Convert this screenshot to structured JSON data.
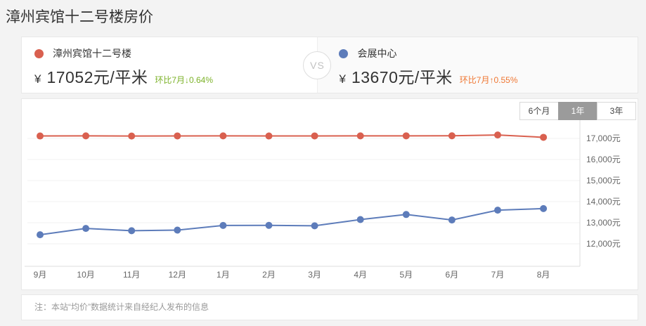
{
  "page_title": "漳州宾馆十二号楼房价",
  "compare": {
    "vs_label": "VS",
    "left": {
      "name": "漳州宾馆十二号楼",
      "currency": "¥",
      "price_text": "17052元/平米",
      "change_label": "环比7月↓0.64%",
      "color": "#d9604f",
      "change_color": "#7cb228"
    },
    "right": {
      "name": "会展中心",
      "currency": "¥",
      "price_text": "13670元/平米",
      "change_label": "环比7月↑0.55%",
      "color": "#5d7cba",
      "change_color": "#ef7733"
    }
  },
  "tabs": [
    {
      "label": "6个月",
      "selected": false
    },
    {
      "label": "1年",
      "selected": true
    },
    {
      "label": "3年",
      "selected": false
    }
  ],
  "note": "注：本站“均价”数据统计来自经纪人发布的信息",
  "chart_data": {
    "type": "line",
    "title": "",
    "xlabel": "",
    "ylabel": "",
    "grid": true,
    "legend_position": "header-panels",
    "categories": [
      "9月",
      "10月",
      "11月",
      "12月",
      "1月",
      "2月",
      "3月",
      "4月",
      "5月",
      "6月",
      "7月",
      "8月"
    ],
    "series": [
      {
        "name": "漳州宾馆十二号楼",
        "color": "#d9604f",
        "values": [
          17115,
          17120,
          17112,
          17118,
          17120,
          17115,
          17118,
          17120,
          17122,
          17125,
          17162,
          17052
        ]
      },
      {
        "name": "会展中心",
        "color": "#5d7cba",
        "values": [
          12430,
          12730,
          12620,
          12650,
          12870,
          12875,
          12855,
          13150,
          13390,
          13130,
          13595,
          13670
        ]
      }
    ],
    "y_ticks": [
      {
        "value": 17000,
        "label": "17,000元"
      },
      {
        "value": 16000,
        "label": "16,000元"
      },
      {
        "value": 15000,
        "label": "15,000元"
      },
      {
        "value": 14000,
        "label": "14,000元"
      },
      {
        "value": 13000,
        "label": "13,000元"
      },
      {
        "value": 12000,
        "label": "12,000元"
      }
    ],
    "ylim": [
      11700,
      17700
    ]
  }
}
